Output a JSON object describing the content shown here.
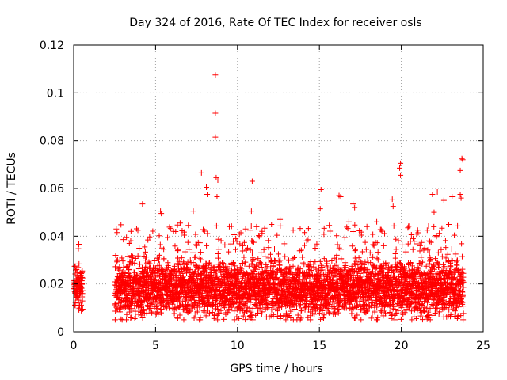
{
  "chart_data": {
    "type": "scatter",
    "title": "Day 324 of 2016, Rate Of TEC Index for receiver osls",
    "xlabel": "GPS time / hours",
    "ylabel": "ROTI / TECUs",
    "xlim": [
      0,
      25
    ],
    "ylim": [
      0,
      0.12
    ],
    "xticks": [
      0,
      5,
      10,
      15,
      20,
      25
    ],
    "xtick_labels": [
      "0",
      "5",
      "10",
      "15",
      "20",
      "25"
    ],
    "yticks": [
      0,
      0.02,
      0.04,
      0.06,
      0.08,
      0.1,
      0.12
    ],
    "ytick_labels": [
      "0",
      "0.02",
      "0.04",
      "0.06",
      "0.08",
      "0.1",
      "0.12"
    ],
    "grid": true,
    "marker": "+",
    "color": "#ff0000",
    "description_note": "Dense band of ROTI values between ~0.005 and ~0.045 TECU/min; data gap from ~0.6 h to ~2.5 h.",
    "data_segments": [
      {
        "x_start": 0.0,
        "x_end": 0.55,
        "y_min": 0.006,
        "y_max": 0.037,
        "y_typical": 0.018
      },
      {
        "x_start": 2.5,
        "x_end": 23.8,
        "y_min": 0.005,
        "y_max": 0.045,
        "y_typical": 0.018
      }
    ],
    "points": [
      {
        "x": 8.65,
        "y": 0.1075
      },
      {
        "x": 8.65,
        "y": 0.0915
      },
      {
        "x": 8.65,
        "y": 0.0815
      },
      {
        "x": 8.7,
        "y": 0.0645
      },
      {
        "x": 8.8,
        "y": 0.0635
      },
      {
        "x": 7.8,
        "y": 0.0665
      },
      {
        "x": 8.1,
        "y": 0.0605
      },
      {
        "x": 8.15,
        "y": 0.0575
      },
      {
        "x": 8.75,
        "y": 0.0565
      },
      {
        "x": 10.9,
        "y": 0.063
      },
      {
        "x": 10.85,
        "y": 0.0505
      },
      {
        "x": 15.1,
        "y": 0.0595
      },
      {
        "x": 15.05,
        "y": 0.0515
      },
      {
        "x": 19.95,
        "y": 0.0705
      },
      {
        "x": 19.9,
        "y": 0.0685
      },
      {
        "x": 19.95,
        "y": 0.0655
      },
      {
        "x": 23.7,
        "y": 0.0725
      },
      {
        "x": 23.75,
        "y": 0.072
      },
      {
        "x": 23.6,
        "y": 0.0675
      },
      {
        "x": 23.6,
        "y": 0.0575
      },
      {
        "x": 23.65,
        "y": 0.056
      },
      {
        "x": 4.2,
        "y": 0.0535
      },
      {
        "x": 5.3,
        "y": 0.0505
      },
      {
        "x": 5.35,
        "y": 0.0495
      },
      {
        "x": 7.3,
        "y": 0.0505
      },
      {
        "x": 16.2,
        "y": 0.057
      },
      {
        "x": 16.3,
        "y": 0.0565
      },
      {
        "x": 17.05,
        "y": 0.0535
      },
      {
        "x": 17.15,
        "y": 0.052
      },
      {
        "x": 19.45,
        "y": 0.0555
      },
      {
        "x": 19.5,
        "y": 0.0525
      },
      {
        "x": 21.9,
        "y": 0.0575
      },
      {
        "x": 22.2,
        "y": 0.0585
      },
      {
        "x": 22.6,
        "y": 0.055
      },
      {
        "x": 23.1,
        "y": 0.0565
      },
      {
        "x": 22.0,
        "y": 0.05
      },
      {
        "x": 2.6,
        "y": 0.043
      },
      {
        "x": 2.65,
        "y": 0.0415
      },
      {
        "x": 3.5,
        "y": 0.042
      },
      {
        "x": 6.1,
        "y": 0.042
      },
      {
        "x": 6.5,
        "y": 0.0455
      },
      {
        "x": 7.0,
        "y": 0.0445
      },
      {
        "x": 9.5,
        "y": 0.044
      },
      {
        "x": 10.5,
        "y": 0.043
      },
      {
        "x": 11.5,
        "y": 0.042
      },
      {
        "x": 12.6,
        "y": 0.047
      },
      {
        "x": 13.4,
        "y": 0.0425
      },
      {
        "x": 14.1,
        "y": 0.0415
      },
      {
        "x": 15.6,
        "y": 0.0445
      },
      {
        "x": 16.8,
        "y": 0.046
      },
      {
        "x": 17.9,
        "y": 0.044
      },
      {
        "x": 18.5,
        "y": 0.046
      },
      {
        "x": 20.4,
        "y": 0.0435
      },
      {
        "x": 21.0,
        "y": 0.0425
      }
    ]
  }
}
